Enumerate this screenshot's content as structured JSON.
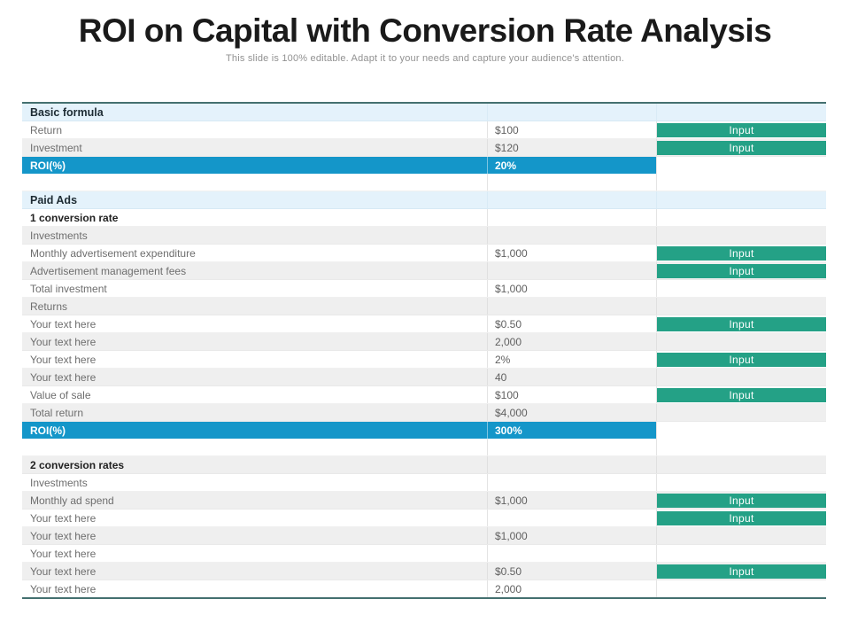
{
  "title": "ROI on Capital with Conversion Rate Analysis",
  "subtitle": "This slide is 100% editable. Adapt it to your needs and capture your audience's attention.",
  "colors": {
    "accent_blue": "#1496c9",
    "accent_green": "#24a186",
    "section_header_blue": "#e4f2fb",
    "alt_row_gray": "#efefef",
    "table_frame": "#44706f"
  },
  "table": {
    "rows": [
      {
        "label": "Basic formula"
      },
      {
        "label": "Return",
        "value": "$100",
        "button": "Input"
      },
      {
        "label": "Investment",
        "value": "$120",
        "button": "Input"
      },
      {
        "label": "ROI(%)",
        "value": "20%"
      },
      {
        "label": ""
      },
      {
        "label": "Paid Ads"
      },
      {
        "label": "1 conversion rate"
      },
      {
        "label": "Investments"
      },
      {
        "label": "Monthly advertisement expenditure",
        "value": "$1,000",
        "button": "Input"
      },
      {
        "label": "Advertisement management fees",
        "button": "Input"
      },
      {
        "label": "Total investment",
        "value": "$1,000"
      },
      {
        "label": "Returns"
      },
      {
        "label": "Your text here",
        "value": "$0.50",
        "button": "Input"
      },
      {
        "label": "Your text here",
        "value": "2,000"
      },
      {
        "label": "Your text here",
        "value": "2%",
        "button": "Input"
      },
      {
        "label": "Your text here",
        "value": "40"
      },
      {
        "label": "Value of sale",
        "value": "$100",
        "button": "Input"
      },
      {
        "label": "Total return",
        "value": "$4,000"
      },
      {
        "label": "ROI(%)",
        "value": "300%"
      },
      {
        "label": ""
      },
      {
        "label": "2 conversion rates"
      },
      {
        "label": "Investments"
      },
      {
        "label": "Monthly ad spend",
        "value": "$1,000",
        "button": "Input"
      },
      {
        "label": "Your text here",
        "button": "Input"
      },
      {
        "label": "Your text here",
        "value": "$1,000"
      },
      {
        "label": "Your text here"
      },
      {
        "label": "Your text here",
        "value": "$0.50",
        "button": "Input"
      },
      {
        "label": "Your text here",
        "value": "2,000"
      }
    ]
  }
}
